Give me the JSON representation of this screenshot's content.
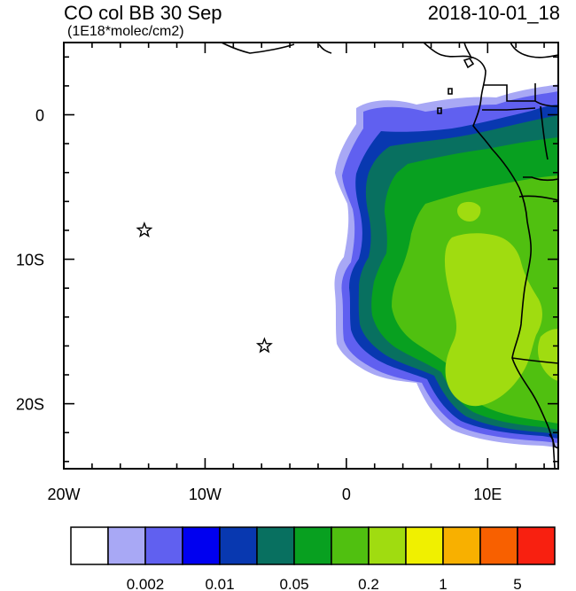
{
  "header": {
    "title": "CO col BB 30 Sep",
    "datetime": "2018-10-01_18",
    "units": "(1E18*molec/cm2)"
  },
  "map": {
    "lon_range": [
      -20,
      15
    ],
    "lat_range": [
      -24.5,
      5
    ],
    "x_ticks": [
      {
        "lon": -20,
        "label": "20W"
      },
      {
        "lon": -10,
        "label": "10W"
      },
      {
        "lon": 0,
        "label": "0"
      },
      {
        "lon": 10,
        "label": "10E"
      }
    ],
    "y_ticks": [
      {
        "lat": 0,
        "label": "0"
      },
      {
        "lat": -10,
        "label": "10S"
      },
      {
        "lat": -20,
        "label": "20S"
      }
    ],
    "markers": [
      {
        "name": "star",
        "lon": -14.3,
        "lat": -8.0
      },
      {
        "name": "star",
        "lon": -5.8,
        "lat": -16.0
      }
    ]
  },
  "colorbar": {
    "colors": [
      "#ffffff",
      "#a8a8f5",
      "#6060f0",
      "#0000f0",
      "#0838b0",
      "#087060",
      "#08a020",
      "#50c010",
      "#a0dc10",
      "#f0f000",
      "#f8b000",
      "#f86000",
      "#f82010"
    ],
    "labels": [
      {
        "after_box": 2,
        "text": "0.002"
      },
      {
        "after_box": 4,
        "text": "0.01"
      },
      {
        "after_box": 6,
        "text": "0.05"
      },
      {
        "after_box": 8,
        "text": "0.2"
      },
      {
        "after_box": 10,
        "text": "1"
      },
      {
        "after_box": 12,
        "text": "5"
      }
    ]
  }
}
